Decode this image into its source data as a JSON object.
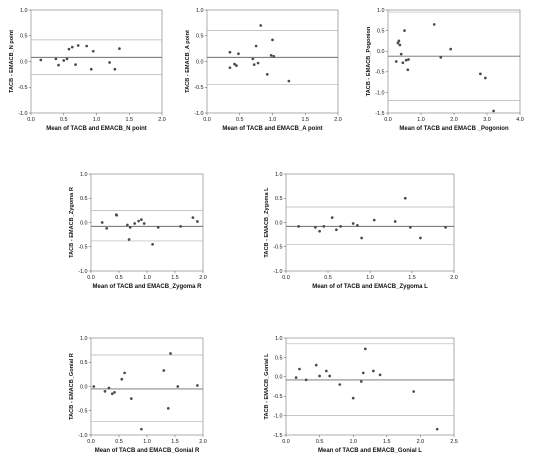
{
  "chart_data": [
    {
      "type": "scatter",
      "title": "",
      "xlabel": "Mean of TACB and EMACB_N point",
      "ylabel": "TACB - EMACB_N point",
      "xlim": [
        0,
        2.0
      ],
      "ylim": [
        -1.0,
        1.0
      ],
      "xticks": [
        "0.0",
        "0.5",
        "1.0",
        "1.5",
        "2.0"
      ],
      "yticks": [
        "-1.0",
        "-0.5",
        "0.0",
        "0.5",
        "1.0"
      ],
      "hlines": [
        0.42,
        0.08,
        -0.25
      ],
      "points": [
        [
          0.15,
          0.03
        ],
        [
          0.38,
          0.05
        ],
        [
          0.42,
          -0.07
        ],
        [
          0.5,
          0.02
        ],
        [
          0.55,
          0.05
        ],
        [
          0.58,
          0.24
        ],
        [
          0.63,
          0.28
        ],
        [
          0.68,
          -0.06
        ],
        [
          0.72,
          0.31
        ],
        [
          0.85,
          0.3
        ],
        [
          0.92,
          -0.15
        ],
        [
          0.95,
          0.2
        ],
        [
          1.2,
          -0.02
        ],
        [
          1.28,
          -0.15
        ],
        [
          1.35,
          0.25
        ]
      ]
    },
    {
      "type": "scatter",
      "title": "",
      "xlabel": "Mean of TACB and EMACB_A point",
      "ylabel": "TACB - EMACB_A point",
      "xlim": [
        0,
        2.0
      ],
      "ylim": [
        -1.0,
        1.0
      ],
      "xticks": [
        "0.0",
        "0.5",
        "1.0",
        "1.5",
        "2.0"
      ],
      "yticks": [
        "-1.0",
        "-0.5",
        "0.0",
        "0.5",
        "1.0"
      ],
      "hlines": [
        0.6,
        0.08,
        -0.45
      ],
      "points": [
        [
          0.35,
          0.18
        ],
        [
          0.35,
          -0.12
        ],
        [
          0.42,
          -0.05
        ],
        [
          0.45,
          -0.08
        ],
        [
          0.48,
          0.15
        ],
        [
          0.7,
          0.05
        ],
        [
          0.72,
          -0.06
        ],
        [
          0.75,
          0.3
        ],
        [
          0.78,
          -0.03
        ],
        [
          0.82,
          0.7
        ],
        [
          0.92,
          -0.25
        ],
        [
          0.98,
          0.12
        ],
        [
          1.0,
          0.42
        ],
        [
          1.02,
          0.1
        ],
        [
          1.25,
          -0.38
        ]
      ]
    },
    {
      "type": "scatter",
      "title": "",
      "xlabel": "Mean of TACB and EMACB _Pogonion",
      "ylabel": "TACB - EMACB_Pogonion",
      "xlim": [
        0,
        4.0
      ],
      "ylim": [
        -1.5,
        1.0
      ],
      "xticks": [
        "0.0",
        "1.0",
        "2.0",
        "3.0",
        "4.0"
      ],
      "yticks": [
        "-1.5",
        "-1.0",
        "-0.5",
        "0.0",
        "0.5",
        "1.0"
      ],
      "hlines": [
        0.95,
        -0.12,
        -1.2
      ],
      "points": [
        [
          0.25,
          -0.25
        ],
        [
          0.3,
          0.2
        ],
        [
          0.33,
          0.25
        ],
        [
          0.36,
          0.15
        ],
        [
          0.4,
          -0.07
        ],
        [
          0.45,
          -0.28
        ],
        [
          0.5,
          0.5
        ],
        [
          0.55,
          -0.22
        ],
        [
          0.6,
          -0.45
        ],
        [
          0.62,
          -0.2
        ],
        [
          1.4,
          0.65
        ],
        [
          1.6,
          -0.15
        ],
        [
          1.9,
          0.05
        ],
        [
          2.8,
          -0.55
        ],
        [
          2.95,
          -0.65
        ],
        [
          3.2,
          -1.45
        ]
      ]
    },
    {
      "type": "scatter",
      "title": "",
      "xlabel": "Mean of TACB and EMACB_Zygoma R",
      "ylabel": "TACB - EMACB_Zygoma R",
      "xlim": [
        0,
        2.0
      ],
      "ylim": [
        -1.0,
        1.0
      ],
      "xticks": [
        "0.0",
        "0.5",
        "1.0",
        "1.5",
        "2.0"
      ],
      "yticks": [
        "-1.0",
        "-0.5",
        "0.0",
        "0.5",
        "1.0"
      ],
      "hlines": [
        0.25,
        -0.08,
        -0.38
      ],
      "points": [
        [
          0.2,
          0.0
        ],
        [
          0.28,
          -0.12
        ],
        [
          0.45,
          0.16
        ],
        [
          0.46,
          0.15
        ],
        [
          0.65,
          -0.05
        ],
        [
          0.68,
          -0.35
        ],
        [
          0.7,
          -0.1
        ],
        [
          0.78,
          -0.02
        ],
        [
          0.85,
          0.03
        ],
        [
          0.9,
          0.06
        ],
        [
          0.95,
          -0.02
        ],
        [
          1.1,
          -0.45
        ],
        [
          1.2,
          -0.1
        ],
        [
          1.6,
          -0.08
        ],
        [
          1.82,
          0.1
        ],
        [
          1.9,
          0.02
        ]
      ]
    },
    {
      "type": "scatter",
      "title": "",
      "xlabel": "Mean of of TACB and EMACB_Zygoma L",
      "ylabel": "TACB - EMACB_Zygoma L",
      "xlim": [
        0,
        2.0
      ],
      "ylim": [
        -1.0,
        1.0
      ],
      "xticks": [
        "0.0",
        "0.5",
        "1.0",
        "1.5",
        "2.0"
      ],
      "yticks": [
        "-1.0",
        "-0.5",
        "0.0",
        "0.5",
        "1.0"
      ],
      "hlines": [
        0.32,
        -0.08,
        -0.45
      ],
      "points": [
        [
          0.15,
          -0.08
        ],
        [
          0.35,
          -0.1
        ],
        [
          0.4,
          -0.18
        ],
        [
          0.45,
          -0.08
        ],
        [
          0.55,
          0.1
        ],
        [
          0.6,
          -0.15
        ],
        [
          0.65,
          -0.08
        ],
        [
          0.8,
          -0.02
        ],
        [
          0.85,
          -0.06
        ],
        [
          0.9,
          -0.32
        ],
        [
          1.05,
          0.05
        ],
        [
          1.3,
          0.02
        ],
        [
          1.42,
          0.5
        ],
        [
          1.48,
          -0.1
        ],
        [
          1.6,
          -0.32
        ],
        [
          1.9,
          -0.1
        ]
      ]
    },
    {
      "type": "scatter",
      "title": "",
      "xlabel": "Mean of TACB and EMACB_Gonial R",
      "ylabel": "TACB - EMACB_Gonial R",
      "xlim": [
        0,
        2.0
      ],
      "ylim": [
        -1.0,
        1.0
      ],
      "xticks": [
        "0.0",
        "0.5",
        "1.0",
        "1.5",
        "2.0"
      ],
      "yticks": [
        "-1.0",
        "-0.5",
        "0.0",
        "0.5",
        "1.0"
      ],
      "hlines": [
        0.65,
        -0.05,
        -0.72
      ],
      "points": [
        [
          0.05,
          0.0
        ],
        [
          0.25,
          -0.1
        ],
        [
          0.32,
          -0.03
        ],
        [
          0.38,
          -0.15
        ],
        [
          0.42,
          -0.12
        ],
        [
          0.55,
          0.15
        ],
        [
          0.6,
          0.28
        ],
        [
          0.72,
          -0.25
        ],
        [
          0.9,
          -0.88
        ],
        [
          1.3,
          0.33
        ],
        [
          1.38,
          -0.45
        ],
        [
          1.42,
          0.68
        ],
        [
          1.55,
          0.0
        ],
        [
          1.9,
          0.02
        ]
      ]
    },
    {
      "type": "scatter",
      "title": "",
      "xlabel": "Mean of TACB and EMACB_Gonial L",
      "ylabel": "TACB - EMACB_Gonial L",
      "xlim": [
        0,
        2.5
      ],
      "ylim": [
        -1.5,
        1.0
      ],
      "xticks": [
        "0.0",
        "0.5",
        "1.0",
        "1.5",
        "2.0",
        "2.5"
      ],
      "yticks": [
        "-1.5",
        "-1.0",
        "-0.5",
        "0.0",
        "0.5",
        "1.0"
      ],
      "hlines": [
        0.85,
        -0.08,
        -1.0
      ],
      "points": [
        [
          0.15,
          -0.02
        ],
        [
          0.2,
          0.2
        ],
        [
          0.3,
          -0.08
        ],
        [
          0.45,
          0.3
        ],
        [
          0.5,
          0.02
        ],
        [
          0.6,
          0.15
        ],
        [
          0.65,
          0.02
        ],
        [
          0.8,
          -0.2
        ],
        [
          1.0,
          -0.55
        ],
        [
          1.12,
          -0.12
        ],
        [
          1.15,
          0.1
        ],
        [
          1.18,
          0.72
        ],
        [
          1.3,
          0.15
        ],
        [
          1.4,
          0.05
        ],
        [
          1.9,
          -0.38
        ],
        [
          2.25,
          -1.35
        ]
      ]
    }
  ]
}
